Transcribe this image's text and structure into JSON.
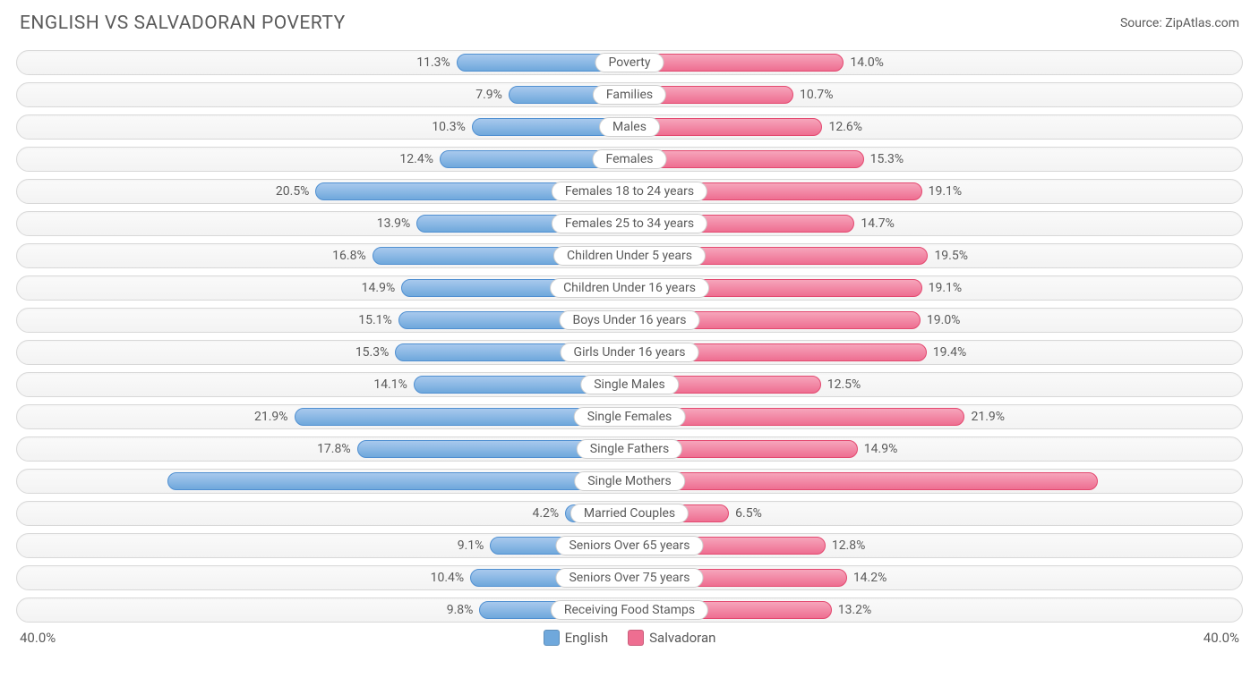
{
  "title": "ENGLISH VS SALVADORAN POVERTY",
  "source_prefix": "Source: ",
  "source_name": "ZipAtlas.com",
  "chart": {
    "type": "diverging-bar",
    "max_pct": 40.0,
    "axis_left_label": "40.0%",
    "axis_right_label": "40.0%",
    "colors": {
      "english": "#6fa8dc",
      "english_light": "#a8c9ed",
      "english_border": "#4f8fd1",
      "salvadoran": "#ee6e91",
      "salvadoran_light": "#f6a5bb",
      "salvadoran_border": "#e3486f",
      "row_border": "#d8d8d8",
      "text": "#5a5a5a",
      "background": "#ffffff"
    },
    "legend": [
      {
        "label": "English",
        "color_key": "english"
      },
      {
        "label": "Salvadoran",
        "color_key": "salvadoran"
      }
    ],
    "rows": [
      {
        "label": "Poverty",
        "english": 11.3,
        "salvadoran": 14.0
      },
      {
        "label": "Families",
        "english": 7.9,
        "salvadoran": 10.7
      },
      {
        "label": "Males",
        "english": 10.3,
        "salvadoran": 12.6
      },
      {
        "label": "Females",
        "english": 12.4,
        "salvadoran": 15.3
      },
      {
        "label": "Females 18 to 24 years",
        "english": 20.5,
        "salvadoran": 19.1
      },
      {
        "label": "Females 25 to 34 years",
        "english": 13.9,
        "salvadoran": 14.7
      },
      {
        "label": "Children Under 5 years",
        "english": 16.8,
        "salvadoran": 19.5
      },
      {
        "label": "Children Under 16 years",
        "english": 14.9,
        "salvadoran": 19.1
      },
      {
        "label": "Boys Under 16 years",
        "english": 15.1,
        "salvadoran": 19.0
      },
      {
        "label": "Girls Under 16 years",
        "english": 15.3,
        "salvadoran": 19.4
      },
      {
        "label": "Single Males",
        "english": 14.1,
        "salvadoran": 12.5
      },
      {
        "label": "Single Females",
        "english": 21.9,
        "salvadoran": 21.9
      },
      {
        "label": "Single Fathers",
        "english": 17.8,
        "salvadoran": 14.9
      },
      {
        "label": "Single Mothers",
        "english": 30.2,
        "salvadoran": 30.6,
        "inside": true
      },
      {
        "label": "Married Couples",
        "english": 4.2,
        "salvadoran": 6.5
      },
      {
        "label": "Seniors Over 65 years",
        "english": 9.1,
        "salvadoran": 12.8
      },
      {
        "label": "Seniors Over 75 years",
        "english": 10.4,
        "salvadoran": 14.2
      },
      {
        "label": "Receiving Food Stamps",
        "english": 9.8,
        "salvadoran": 13.2
      }
    ]
  }
}
